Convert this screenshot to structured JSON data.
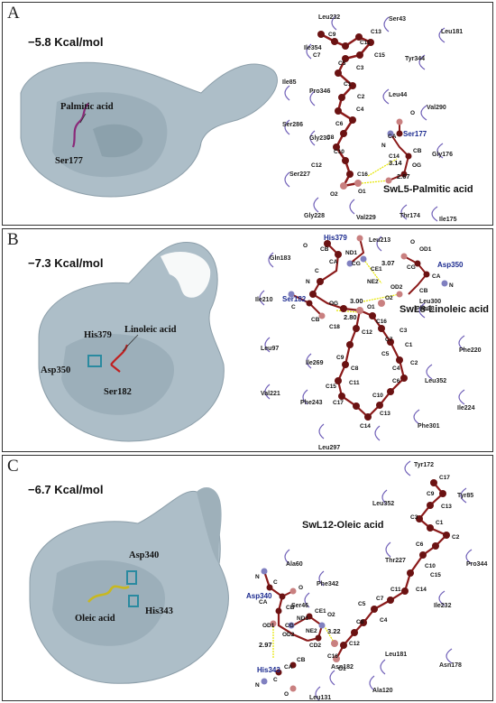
{
  "panels": [
    {
      "label": "A",
      "energy": "−5.8 Kcal/mol",
      "structure_labels": [
        "Palmitic acid",
        "Ser177"
      ],
      "title": "SwL5-Palmitic acid",
      "hb_residue": "Ser177",
      "hbond_distances": [
        "3.14",
        "2.67"
      ],
      "residues": [
        "Leu232",
        "Ser43",
        "Leu181",
        "Ile354",
        "Tyr344",
        "Ile85",
        "Pro346",
        "Leu44",
        "Val290",
        "Ser286",
        "Gly230",
        "Gly176",
        "Ser227",
        "Gly228",
        "Val229",
        "Thr174",
        "Ile175"
      ],
      "atoms": [
        "C9",
        "C11",
        "C13",
        "C7",
        "C5",
        "C15",
        "C3",
        "C1",
        "C2",
        "C4",
        "O",
        "C6",
        "CA",
        "C8",
        "N",
        "C10",
        "C14",
        "CB",
        "C12",
        "OG",
        "C16",
        "O2",
        "O1"
      ]
    },
    {
      "label": "B",
      "energy": "−7.3 Kcal/mol",
      "structure_labels": [
        "His379",
        "Linoleic acid",
        "Asp350",
        "Ser182"
      ],
      "title": "SwL8-Linoleic acid",
      "hb_residues": [
        "His379",
        "Asp350",
        "Ser182"
      ],
      "hbond_distances": [
        "3.07",
        "3.00",
        "2.80"
      ],
      "residues": [
        "Leu213",
        "Gln183",
        "Ile210",
        "Leu300",
        "Phe98",
        "Phe220",
        "Leu97",
        "Ile269",
        "Leu352",
        "Val221",
        "Phe243",
        "Ile224",
        "Phe301",
        "Leu297"
      ],
      "atoms": [
        "CB",
        "O",
        "ND1",
        "CA",
        "CG",
        "CE1",
        "C",
        "NE2",
        "N",
        "OD1",
        "CG",
        "O",
        "CA",
        "CB",
        "OD2",
        "N",
        "C",
        "OG",
        "O1",
        "O2",
        "CB",
        "C18",
        "C16",
        "C12",
        "C7",
        "C3",
        "C5",
        "C1",
        "C2",
        "C4",
        "C9",
        "C8",
        "C11",
        "C6",
        "C15",
        "C10",
        "C13",
        "C17",
        "C14"
      ]
    },
    {
      "label": "C",
      "energy": "−6.7 Kcal/mol",
      "structure_labels": [
        "Asp340",
        "Oleic acid",
        "His343"
      ],
      "title": "SwL12-Oleic acid",
      "hb_residues": [
        "Asp340",
        "His343"
      ],
      "hbond_distances": [
        "3.22",
        "2.97"
      ],
      "residues": [
        "Tyr172",
        "Leu352",
        "Tyr85",
        "Ala60",
        "Thr227",
        "Pro344",
        "Phe342",
        "Ser46",
        "Ile232",
        "Leu181",
        "Asn178",
        "Asn182",
        "Ala120",
        "Leu131"
      ],
      "atoms": [
        "C17",
        "C9",
        "C13",
        "C3",
        "C1",
        "C2",
        "C6",
        "C10",
        "C15",
        "C11",
        "C14",
        "C7",
        "C5",
        "C4",
        "C8",
        "O2",
        "C12",
        "O1",
        "C16",
        "O",
        "C",
        "CA",
        "CB",
        "N",
        "OD1",
        "CG",
        "OD2",
        "ND1",
        "CE1",
        "NE2",
        "CD2",
        "N",
        "CA",
        "CB",
        "C",
        "O"
      ]
    }
  ],
  "colors": {
    "bond": "#8b1a1a",
    "atom": "#6b1212",
    "hbond": "#e6e600",
    "residue_arc": "#7060b8",
    "surface": "#9fb3bf"
  }
}
